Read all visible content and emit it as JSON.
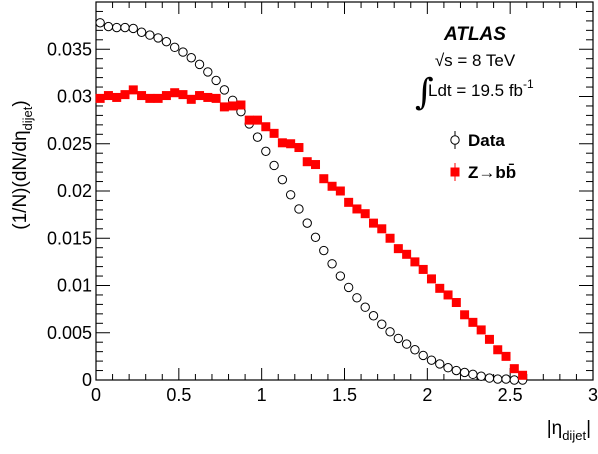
{
  "chart_data": {
    "type": "scatter",
    "xlabel_main": "|η",
    "xlabel_sub": "dijet",
    "xlabel_end": "|",
    "ylabel_main": "(1/N)(dN/dη",
    "ylabel_sub": "dijet",
    "ylabel_end": ")",
    "xlim": [
      0,
      3
    ],
    "ylim": [
      0,
      0.04
    ],
    "xticks": [
      0,
      0.5,
      1,
      1.5,
      2,
      2.5,
      3
    ],
    "xtick_labels": [
      "0",
      "0.5",
      "1",
      "1.5",
      "2",
      "2.5",
      "3"
    ],
    "yticks": [
      0,
      0.005,
      0.01,
      0.015,
      0.02,
      0.025,
      0.03,
      0.035
    ],
    "ytick_labels": [
      "0",
      "0.005",
      "0.01",
      "0.015",
      "0.02",
      "0.025",
      "0.03",
      "0.035"
    ],
    "annotations": {
      "experiment": "ATLAS",
      "energy_prefix": "√s = 8 TeV",
      "lumi_prefix": "Ldt = 19.5 fb",
      "lumi_sup": "-1"
    },
    "legend_position": "top-right",
    "series": [
      {
        "name": "Data",
        "marker": "open-circle",
        "color": "#000000",
        "x": [
          0.025,
          0.075,
          0.125,
          0.175,
          0.225,
          0.275,
          0.325,
          0.375,
          0.425,
          0.475,
          0.525,
          0.575,
          0.625,
          0.675,
          0.725,
          0.775,
          0.825,
          0.875,
          0.925,
          0.975,
          1.025,
          1.075,
          1.125,
          1.175,
          1.225,
          1.275,
          1.325,
          1.375,
          1.425,
          1.475,
          1.525,
          1.575,
          1.625,
          1.675,
          1.725,
          1.775,
          1.825,
          1.875,
          1.925,
          1.975,
          2.025,
          2.075,
          2.125,
          2.175,
          2.225,
          2.275,
          2.325,
          2.375,
          2.425,
          2.475,
          2.525,
          2.575
        ],
        "y": [
          0.0378,
          0.0374,
          0.0373,
          0.0373,
          0.0372,
          0.0368,
          0.0365,
          0.0362,
          0.0358,
          0.0352,
          0.0347,
          0.0341,
          0.0334,
          0.0326,
          0.0317,
          0.0307,
          0.0296,
          0.0284,
          0.0271,
          0.0257,
          0.0242,
          0.0227,
          0.0212,
          0.0196,
          0.0181,
          0.0166,
          0.0151,
          0.0137,
          0.0123,
          0.011,
          0.0098,
          0.0087,
          0.0077,
          0.0068,
          0.0059,
          0.0051,
          0.0044,
          0.0038,
          0.0032,
          0.0026,
          0.0021,
          0.0017,
          0.0013,
          0.001,
          0.0008,
          0.0006,
          0.0004,
          0.0002,
          0.0001,
          0.0001,
          0.0,
          0.0
        ]
      },
      {
        "name": "Z→bb̄",
        "marker": "filled-square",
        "color": "#ff0000",
        "x": [
          0.025,
          0.075,
          0.125,
          0.175,
          0.225,
          0.275,
          0.325,
          0.375,
          0.425,
          0.475,
          0.525,
          0.575,
          0.625,
          0.675,
          0.725,
          0.775,
          0.825,
          0.875,
          0.925,
          0.975,
          1.025,
          1.075,
          1.125,
          1.175,
          1.225,
          1.275,
          1.325,
          1.375,
          1.425,
          1.475,
          1.525,
          1.575,
          1.625,
          1.675,
          1.725,
          1.775,
          1.825,
          1.875,
          1.925,
          1.975,
          2.025,
          2.075,
          2.125,
          2.175,
          2.225,
          2.275,
          2.325,
          2.375,
          2.425,
          2.475,
          2.525,
          2.575
        ],
        "y": [
          0.0298,
          0.0301,
          0.0299,
          0.0302,
          0.0307,
          0.0301,
          0.0298,
          0.0298,
          0.0301,
          0.0304,
          0.0302,
          0.0297,
          0.0301,
          0.0299,
          0.0298,
          0.0289,
          0.029,
          0.0291,
          0.0275,
          0.0275,
          0.0268,
          0.0261,
          0.0251,
          0.025,
          0.0246,
          0.0231,
          0.0228,
          0.0213,
          0.0205,
          0.02,
          0.0188,
          0.0181,
          0.0176,
          0.0166,
          0.016,
          0.015,
          0.0139,
          0.0133,
          0.0125,
          0.0117,
          0.0107,
          0.0097,
          0.009,
          0.0082,
          0.0069,
          0.0061,
          0.0053,
          0.0043,
          0.0032,
          0.0025,
          0.0012,
          0.0005
        ]
      }
    ]
  }
}
